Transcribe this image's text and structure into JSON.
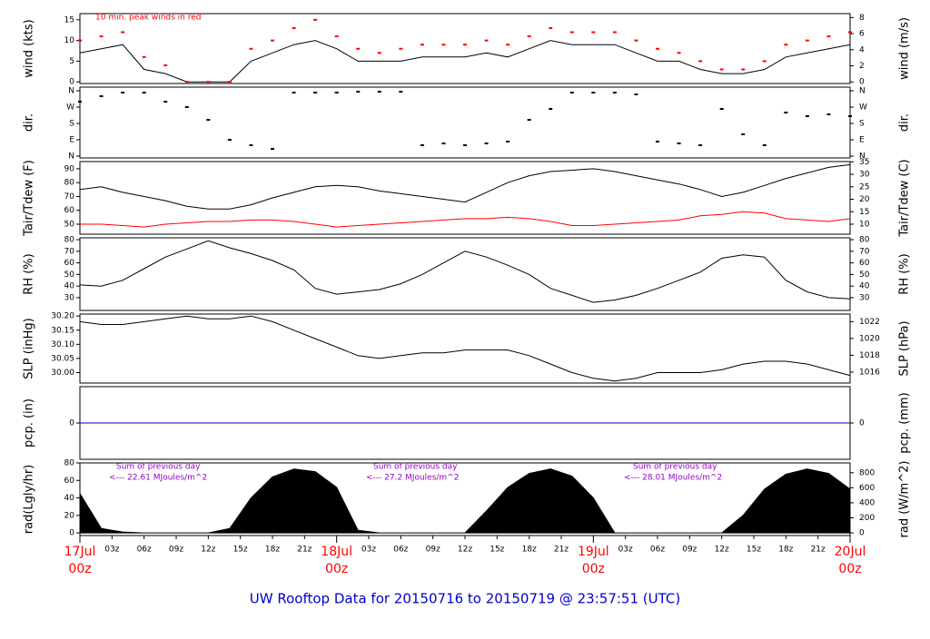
{
  "chart_data": {
    "title": "UW Rooftop Data for 20150716  to  20150719 @ 23:57:51  (UTC)",
    "x": [
      0,
      2,
      4,
      6,
      8,
      10,
      12,
      14,
      16,
      18,
      20,
      22,
      24,
      26,
      28,
      30,
      32,
      34,
      36,
      38,
      40,
      42,
      44,
      46,
      48,
      50,
      52,
      54,
      56,
      58,
      60,
      62,
      64,
      66,
      68,
      70,
      72
    ],
    "xlim": [
      0,
      72
    ],
    "xticks": [
      {
        "value": 0,
        "label": "00z"
      },
      {
        "value": 3,
        "label": "03z"
      },
      {
        "value": 6,
        "label": "06z"
      },
      {
        "value": 9,
        "label": "09z"
      },
      {
        "value": 12,
        "label": "12z"
      },
      {
        "value": 15,
        "label": "15z"
      },
      {
        "value": 18,
        "label": "18z"
      },
      {
        "value": 21,
        "label": "21z"
      },
      {
        "value": 24,
        "label": "00z"
      },
      {
        "value": 27,
        "label": "03z"
      },
      {
        "value": 30,
        "label": "06z"
      },
      {
        "value": 33,
        "label": "09z"
      },
      {
        "value": 36,
        "label": "12z"
      },
      {
        "value": 39,
        "label": "15z"
      },
      {
        "value": 42,
        "label": "18z"
      },
      {
        "value": 45,
        "label": "21z"
      },
      {
        "value": 48,
        "label": "00z"
      },
      {
        "value": 51,
        "label": "03z"
      },
      {
        "value": 54,
        "label": "06z"
      },
      {
        "value": 57,
        "label": "09z"
      },
      {
        "value": 60,
        "label": "12z"
      },
      {
        "value": 63,
        "label": "15z"
      },
      {
        "value": 66,
        "label": "18z"
      },
      {
        "value": 69,
        "label": "21z"
      },
      {
        "value": 72,
        "label": "00z"
      }
    ],
    "date_ticks": [
      {
        "value": 0,
        "label": "17Jul"
      },
      {
        "value": 24,
        "label": "18Jul"
      },
      {
        "value": 48,
        "label": "19Jul"
      },
      {
        "value": 72,
        "label": "20Jul"
      }
    ],
    "panels": [
      {
        "type": "line",
        "ylabel": "wind (kts)",
        "y2label": "wind (m/s)",
        "ylim": [
          -0.4,
          16.5
        ],
        "yticks": [
          0,
          5,
          10,
          15
        ],
        "y2lim": [
          -0.2,
          8.49
        ],
        "y2ticks": [
          0,
          2,
          4,
          6,
          8
        ],
        "annotations": [
          "10 min. peak winds in red"
        ],
        "series": [
          {
            "name": "wind",
            "type": "line",
            "color": "#000000",
            "values": [
              7,
              8,
              9,
              3,
              2,
              0,
              0,
              0,
              5,
              7,
              9,
              10,
              8,
              5,
              5,
              5,
              6,
              6,
              6,
              7,
              6,
              8,
              10,
              9,
              9,
              9,
              7,
              5,
              5,
              3,
              2,
              2,
              3,
              6,
              7,
              8,
              9
            ]
          },
          {
            "name": "peak",
            "type": "scatter",
            "color": "#ff0000",
            "values": [
              10,
              11,
              12,
              6,
              4,
              0,
              0,
              0,
              8,
              10,
              13,
              15,
              11,
              8,
              7,
              8,
              9,
              9,
              9,
              10,
              9,
              11,
              13,
              12,
              12,
              12,
              10,
              8,
              7,
              5,
              3,
              3,
              5,
              9,
              10,
              11,
              12
            ]
          }
        ]
      },
      {
        "type": "scatter",
        "ylabel": "dir.",
        "y2label": "dir.",
        "ylim": [
          -10,
          380
        ],
        "yticks": [
          {
            "value": 0,
            "label": "N"
          },
          {
            "value": 90,
            "label": "E"
          },
          {
            "value": 180,
            "label": "S"
          },
          {
            "value": 270,
            "label": "W"
          },
          {
            "value": 360,
            "label": "N"
          }
        ],
        "y2lim": [
          -10,
          380
        ],
        "y2ticks": [
          {
            "value": 0,
            "label": "N"
          },
          {
            "value": 90,
            "label": "E"
          },
          {
            "value": 180,
            "label": "S"
          },
          {
            "value": 270,
            "label": "W"
          },
          {
            "value": 360,
            "label": "N"
          }
        ],
        "series": [
          {
            "name": "direction",
            "type": "scatter",
            "color": "#000000",
            "values": [
              300,
              330,
              350,
              350,
              300,
              270,
              200,
              90,
              60,
              40,
              350,
              350,
              350,
              355,
              355,
              355,
              60,
              70,
              60,
              70,
              80,
              200,
              260,
              350,
              350,
              350,
              340,
              80,
              70,
              60,
              260,
              120,
              60,
              240,
              220,
              230,
              220
            ]
          }
        ]
      },
      {
        "type": "line",
        "ylabel": "Tair/Tdew (F)",
        "y2label": "Tair/Tdew (C)",
        "ylim": [
          42.8,
          95.2
        ],
        "yticks": [
          50,
          60,
          70,
          80,
          90
        ],
        "y2lim": [
          6.0,
          35.1
        ],
        "y2ticks": [
          10,
          15,
          20,
          25,
          30,
          35
        ],
        "series": [
          {
            "name": "Tair",
            "type": "line",
            "color": "#000000",
            "values": [
              75,
              77,
              73,
              70,
              67,
              63,
              61,
              61,
              64,
              69,
              73,
              77,
              78,
              77,
              74,
              72,
              70,
              68,
              66,
              73,
              80,
              85,
              88,
              89,
              90,
              88,
              85,
              82,
              79,
              75,
              70,
              73,
              78,
              83,
              87,
              91,
              93
            ]
          },
          {
            "name": "Tdew",
            "type": "line",
            "color": "#ff0000",
            "values": [
              50,
              50,
              49,
              48,
              50,
              51,
              52,
              52,
              53,
              53,
              52,
              50,
              48,
              49,
              50,
              51,
              52,
              53,
              54,
              54,
              55,
              54,
              52,
              49,
              49,
              50,
              51,
              52,
              53,
              56,
              57,
              59,
              58,
              54,
              53,
              52,
              54
            ]
          }
        ]
      },
      {
        "type": "line",
        "ylabel": "RH (%)",
        "y2label": "RH (%)",
        "ylim": [
          19,
          81.6
        ],
        "yticks": [
          30,
          40,
          50,
          60,
          70,
          80
        ],
        "y2lim": [
          19,
          81.6
        ],
        "y2ticks": [
          30,
          40,
          50,
          60,
          70,
          80
        ],
        "series": [
          {
            "name": "RH",
            "type": "line",
            "color": "#000000",
            "values": [
              41,
              40,
              45,
              55,
              65,
              72,
              79,
              73,
              68,
              62,
              54,
              38,
              33,
              35,
              37,
              42,
              50,
              60,
              70,
              65,
              58,
              50,
              38,
              32,
              26,
              28,
              32,
              38,
              45,
              52,
              64,
              67,
              65,
              45,
              35,
              30,
              29
            ]
          }
        ]
      },
      {
        "type": "line",
        "ylabel": "SLP (inHg)",
        "y2label": "SLP (hPa)",
        "ylim": [
          29.963,
          30.207
        ],
        "yticks": [
          {
            "value": 30.0,
            "label": "30.00"
          },
          {
            "value": 30.05,
            "label": "30.05"
          },
          {
            "value": 30.1,
            "label": "30.10"
          },
          {
            "value": 30.15,
            "label": "30.15"
          },
          {
            "value": 30.2,
            "label": "30.20"
          }
        ],
        "y2lim": [
          1014.7,
          1022.9
        ],
        "y2ticks": [
          1016,
          1018,
          1020,
          1022
        ],
        "series": [
          {
            "name": "SLP",
            "type": "line",
            "color": "#000000",
            "values": [
              30.18,
              30.17,
              30.17,
              30.18,
              30.19,
              30.2,
              30.19,
              30.19,
              30.2,
              30.18,
              30.15,
              30.12,
              30.09,
              30.06,
              30.05,
              30.06,
              30.07,
              30.07,
              30.08,
              30.08,
              30.08,
              30.06,
              30.03,
              30.0,
              29.98,
              29.97,
              29.98,
              30.0,
              30.0,
              30.0,
              30.01,
              30.03,
              30.04,
              30.04,
              30.03,
              30.01,
              29.99
            ]
          }
        ]
      },
      {
        "type": "line",
        "ylabel": "pcp. (in)",
        "y2label": "pcp. (mm)",
        "ylim": [
          -1,
          1
        ],
        "yticks": [
          0
        ],
        "y2lim": [
          -1,
          1
        ],
        "y2ticks": [
          0
        ],
        "series": [
          {
            "name": "pcp",
            "type": "line",
            "color": "#0000cc",
            "values": [
              0,
              0,
              0,
              0,
              0,
              0,
              0,
              0,
              0,
              0,
              0,
              0,
              0,
              0,
              0,
              0,
              0,
              0,
              0,
              0,
              0,
              0,
              0,
              0,
              0,
              0,
              0,
              0,
              0,
              0,
              0,
              0,
              0,
              0,
              0,
              0,
              0
            ]
          }
        ]
      },
      {
        "type": "area",
        "ylabel": "rad(Lgly/hr)",
        "y2label": "rad (W/m^2)",
        "ylim": [
          -3,
          80
        ],
        "yticks": [
          0,
          20,
          40,
          60,
          80
        ],
        "y2lim": [
          -35,
          930
        ],
        "y2ticks": [
          0,
          200,
          400,
          600,
          800
        ],
        "annotations": [
          "Sum of previous day",
          "<--- 22.61 MJoules/m^2",
          "Sum of previous day",
          "<--- 27.2 MJoules/m^2",
          "Sum of previous day",
          "<--- 28.01 MJoules/m^2"
        ],
        "series": [
          {
            "name": "radiation",
            "type": "area",
            "color": "#000000",
            "values": [
              45,
              5,
              1,
              0,
              0,
              0,
              0,
              5,
              40,
              64,
              73,
              70,
              52,
              3,
              0,
              0,
              0,
              0,
              0,
              25,
              52,
              68,
              73,
              65,
              40,
              0,
              0,
              0,
              0,
              0,
              0,
              20,
              50,
              67,
              73,
              68,
              50
            ]
          }
        ]
      }
    ]
  }
}
